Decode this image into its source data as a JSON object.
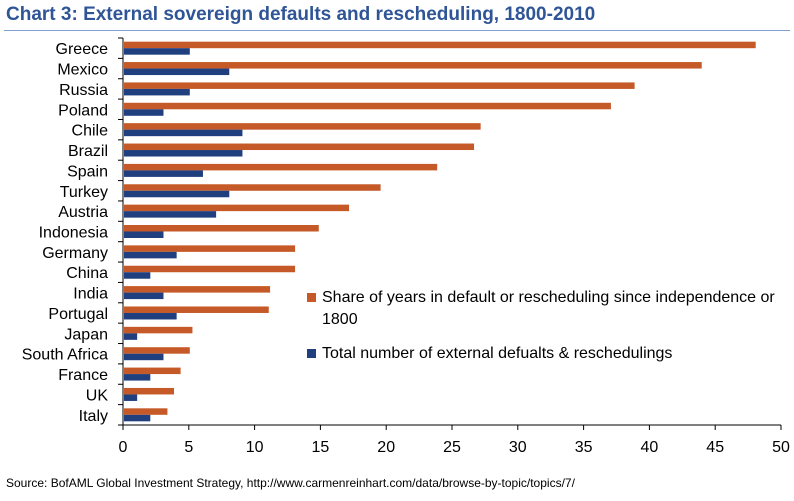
{
  "title": "Chart 3: External sovereign defaults and rescheduling, 1800-2010",
  "source": "Source: BofAML Global Investment Strategy,  http://www.carmenreinhart.com/data/browse-by-topic/topics/7/",
  "chart_data": {
    "type": "bar",
    "orientation": "horizontal",
    "title": "Chart 3: External sovereign defaults and rescheduling, 1800-2010",
    "categories": [
      "Greece",
      "Mexico",
      "Russia",
      "Poland",
      "Chile",
      "Brazil",
      "Spain",
      "Turkey",
      "Austria",
      "Indonesia",
      "Germany",
      "China",
      "India",
      "Portugal",
      "Japan",
      "South Africa",
      "France",
      "UK",
      "Italy"
    ],
    "series": [
      {
        "name": "Share of years in default or rescheduling since independence or 1800",
        "color": "#c55a28",
        "values": [
          48.0,
          43.9,
          38.8,
          37.0,
          27.1,
          26.6,
          23.8,
          19.5,
          17.1,
          14.8,
          13.0,
          13.0,
          11.1,
          11.0,
          5.2,
          5.0,
          4.3,
          3.8,
          3.3
        ]
      },
      {
        "name": "Total number of external defualts & reschedulings",
        "color": "#1f3f7f",
        "values": [
          5,
          8,
          5,
          3,
          9,
          9,
          6,
          8,
          7,
          3,
          4,
          2,
          3,
          4,
          1,
          3,
          2,
          1,
          2
        ]
      }
    ],
    "xlim": [
      0,
      50
    ],
    "xticks": [
      "0",
      "5",
      "10",
      "15",
      "20",
      "25",
      "30",
      "35",
      "40",
      "45",
      "50"
    ],
    "legend_position": "center-right",
    "grid": false
  }
}
